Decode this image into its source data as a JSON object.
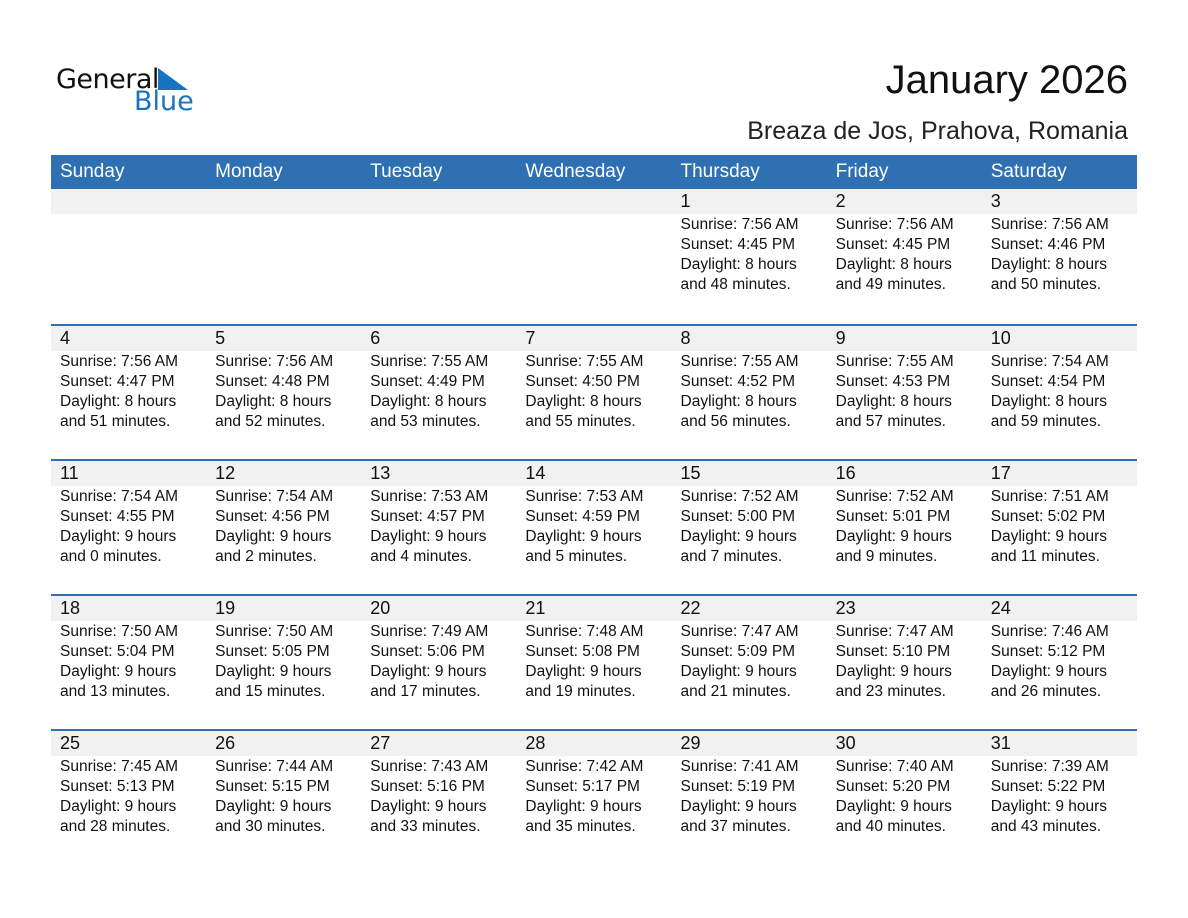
{
  "logo": {
    "text1": "General",
    "text2": "Blue",
    "color": "#1a73be"
  },
  "title": "January 2026",
  "subtitle": "Breaza de Jos, Prahova, Romania",
  "colors": {
    "header": "#2e70b2",
    "band": "#f1f1f1"
  },
  "days_of_week": [
    "Sunday",
    "Monday",
    "Tuesday",
    "Wednesday",
    "Thursday",
    "Friday",
    "Saturday"
  ],
  "weeks": [
    [
      null,
      null,
      null,
      null,
      {
        "day": "1",
        "sunrise": "Sunrise: 7:56 AM",
        "sunset": "Sunset: 4:45 PM",
        "daylight1": "Daylight: 8 hours",
        "daylight2": "and 48 minutes."
      },
      {
        "day": "2",
        "sunrise": "Sunrise: 7:56 AM",
        "sunset": "Sunset: 4:45 PM",
        "daylight1": "Daylight: 8 hours",
        "daylight2": "and 49 minutes."
      },
      {
        "day": "3",
        "sunrise": "Sunrise: 7:56 AM",
        "sunset": "Sunset: 4:46 PM",
        "daylight1": "Daylight: 8 hours",
        "daylight2": "and 50 minutes."
      }
    ],
    [
      {
        "day": "4",
        "sunrise": "Sunrise: 7:56 AM",
        "sunset": "Sunset: 4:47 PM",
        "daylight1": "Daylight: 8 hours",
        "daylight2": "and 51 minutes."
      },
      {
        "day": "5",
        "sunrise": "Sunrise: 7:56 AM",
        "sunset": "Sunset: 4:48 PM",
        "daylight1": "Daylight: 8 hours",
        "daylight2": "and 52 minutes."
      },
      {
        "day": "6",
        "sunrise": "Sunrise: 7:55 AM",
        "sunset": "Sunset: 4:49 PM",
        "daylight1": "Daylight: 8 hours",
        "daylight2": "and 53 minutes."
      },
      {
        "day": "7",
        "sunrise": "Sunrise: 7:55 AM",
        "sunset": "Sunset: 4:50 PM",
        "daylight1": "Daylight: 8 hours",
        "daylight2": "and 55 minutes."
      },
      {
        "day": "8",
        "sunrise": "Sunrise: 7:55 AM",
        "sunset": "Sunset: 4:52 PM",
        "daylight1": "Daylight: 8 hours",
        "daylight2": "and 56 minutes."
      },
      {
        "day": "9",
        "sunrise": "Sunrise: 7:55 AM",
        "sunset": "Sunset: 4:53 PM",
        "daylight1": "Daylight: 8 hours",
        "daylight2": "and 57 minutes."
      },
      {
        "day": "10",
        "sunrise": "Sunrise: 7:54 AM",
        "sunset": "Sunset: 4:54 PM",
        "daylight1": "Daylight: 8 hours",
        "daylight2": "and 59 minutes."
      }
    ],
    [
      {
        "day": "11",
        "sunrise": "Sunrise: 7:54 AM",
        "sunset": "Sunset: 4:55 PM",
        "daylight1": "Daylight: 9 hours",
        "daylight2": "and 0 minutes."
      },
      {
        "day": "12",
        "sunrise": "Sunrise: 7:54 AM",
        "sunset": "Sunset: 4:56 PM",
        "daylight1": "Daylight: 9 hours",
        "daylight2": "and 2 minutes."
      },
      {
        "day": "13",
        "sunrise": "Sunrise: 7:53 AM",
        "sunset": "Sunset: 4:57 PM",
        "daylight1": "Daylight: 9 hours",
        "daylight2": "and 4 minutes."
      },
      {
        "day": "14",
        "sunrise": "Sunrise: 7:53 AM",
        "sunset": "Sunset: 4:59 PM",
        "daylight1": "Daylight: 9 hours",
        "daylight2": "and 5 minutes."
      },
      {
        "day": "15",
        "sunrise": "Sunrise: 7:52 AM",
        "sunset": "Sunset: 5:00 PM",
        "daylight1": "Daylight: 9 hours",
        "daylight2": "and 7 minutes."
      },
      {
        "day": "16",
        "sunrise": "Sunrise: 7:52 AM",
        "sunset": "Sunset: 5:01 PM",
        "daylight1": "Daylight: 9 hours",
        "daylight2": "and 9 minutes."
      },
      {
        "day": "17",
        "sunrise": "Sunrise: 7:51 AM",
        "sunset": "Sunset: 5:02 PM",
        "daylight1": "Daylight: 9 hours",
        "daylight2": "and 11 minutes."
      }
    ],
    [
      {
        "day": "18",
        "sunrise": "Sunrise: 7:50 AM",
        "sunset": "Sunset: 5:04 PM",
        "daylight1": "Daylight: 9 hours",
        "daylight2": "and 13 minutes."
      },
      {
        "day": "19",
        "sunrise": "Sunrise: 7:50 AM",
        "sunset": "Sunset: 5:05 PM",
        "daylight1": "Daylight: 9 hours",
        "daylight2": "and 15 minutes."
      },
      {
        "day": "20",
        "sunrise": "Sunrise: 7:49 AM",
        "sunset": "Sunset: 5:06 PM",
        "daylight1": "Daylight: 9 hours",
        "daylight2": "and 17 minutes."
      },
      {
        "day": "21",
        "sunrise": "Sunrise: 7:48 AM",
        "sunset": "Sunset: 5:08 PM",
        "daylight1": "Daylight: 9 hours",
        "daylight2": "and 19 minutes."
      },
      {
        "day": "22",
        "sunrise": "Sunrise: 7:47 AM",
        "sunset": "Sunset: 5:09 PM",
        "daylight1": "Daylight: 9 hours",
        "daylight2": "and 21 minutes."
      },
      {
        "day": "23",
        "sunrise": "Sunrise: 7:47 AM",
        "sunset": "Sunset: 5:10 PM",
        "daylight1": "Daylight: 9 hours",
        "daylight2": "and 23 minutes."
      },
      {
        "day": "24",
        "sunrise": "Sunrise: 7:46 AM",
        "sunset": "Sunset: 5:12 PM",
        "daylight1": "Daylight: 9 hours",
        "daylight2": "and 26 minutes."
      }
    ],
    [
      {
        "day": "25",
        "sunrise": "Sunrise: 7:45 AM",
        "sunset": "Sunset: 5:13 PM",
        "daylight1": "Daylight: 9 hours",
        "daylight2": "and 28 minutes."
      },
      {
        "day": "26",
        "sunrise": "Sunrise: 7:44 AM",
        "sunset": "Sunset: 5:15 PM",
        "daylight1": "Daylight: 9 hours",
        "daylight2": "and 30 minutes."
      },
      {
        "day": "27",
        "sunrise": "Sunrise: 7:43 AM",
        "sunset": "Sunset: 5:16 PM",
        "daylight1": "Daylight: 9 hours",
        "daylight2": "and 33 minutes."
      },
      {
        "day": "28",
        "sunrise": "Sunrise: 7:42 AM",
        "sunset": "Sunset: 5:17 PM",
        "daylight1": "Daylight: 9 hours",
        "daylight2": "and 35 minutes."
      },
      {
        "day": "29",
        "sunrise": "Sunrise: 7:41 AM",
        "sunset": "Sunset: 5:19 PM",
        "daylight1": "Daylight: 9 hours",
        "daylight2": "and 37 minutes."
      },
      {
        "day": "30",
        "sunrise": "Sunrise: 7:40 AM",
        "sunset": "Sunset: 5:20 PM",
        "daylight1": "Daylight: 9 hours",
        "daylight2": "and 40 minutes."
      },
      {
        "day": "31",
        "sunrise": "Sunrise: 7:39 AM",
        "sunset": "Sunset: 5:22 PM",
        "daylight1": "Daylight: 9 hours",
        "daylight2": "and 43 minutes."
      }
    ]
  ]
}
